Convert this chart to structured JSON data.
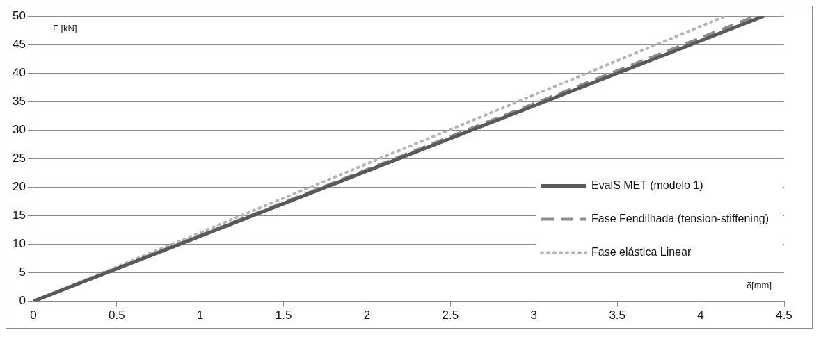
{
  "chart_data": {
    "type": "line",
    "xlabel": "δ[mm]",
    "ylabel": "F [kN]",
    "xlim": [
      0,
      4.5
    ],
    "xticks": [
      0,
      0.5,
      1,
      1.5,
      2,
      2.5,
      3,
      3.5,
      4,
      4.5
    ],
    "ylim": [
      0,
      50
    ],
    "yticks": [
      0,
      5,
      10,
      15,
      20,
      25,
      30,
      35,
      40,
      45,
      50
    ],
    "grid": "y",
    "legend": "bottom right",
    "marker": "none",
    "series": [
      {
        "name": "EvalS MET (modelo 1)",
        "color": "#595959",
        "line_style": "solid",
        "x": [
          0,
          4.38
        ],
        "values": [
          0,
          50
        ]
      },
      {
        "name": "Fase Fendilhada (tension-stiffening)",
        "color": "#8c8c8c",
        "line_style": "dashed",
        "x": [
          0,
          4.33
        ],
        "values": [
          0,
          50
        ]
      },
      {
        "name": "Fase elástica Linear",
        "color": "#b4b4b4",
        "line_style": "dotted",
        "x": [
          0,
          4.15
        ],
        "values": [
          0,
          50
        ]
      }
    ]
  }
}
